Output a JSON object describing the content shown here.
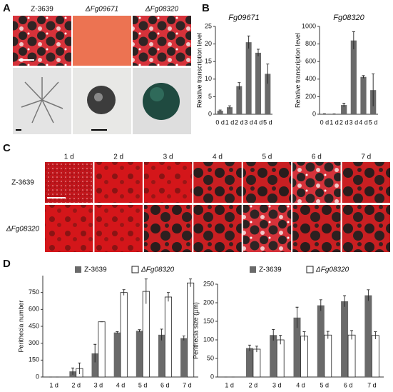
{
  "panel_labels": [
    "A",
    "B",
    "C",
    "D"
  ],
  "panel_a": {
    "strains": [
      "Z-3639",
      "ΔFg09671",
      "ΔFg08320"
    ]
  },
  "panel_c": {
    "days": [
      "1 d",
      "2 d",
      "3 d",
      "4 d",
      "5 d",
      "6 d",
      "7 d"
    ],
    "strains": [
      "Z-3639",
      "ΔFg08320"
    ]
  },
  "chart_data": [
    {
      "type": "bar",
      "title": "Fg09671",
      "y_label": "Relative transcription level",
      "categories": [
        "0 d",
        "1 d",
        "2 d",
        "3 d",
        "4 d",
        "5 d"
      ],
      "values": [
        1,
        2,
        8,
        20.5,
        17.5,
        11.5
      ],
      "errors": [
        0.2,
        0.4,
        1,
        1.8,
        1,
        2.8
      ],
      "color": "#6a6a6a",
      "ylim": [
        0,
        25
      ],
      "yticks": [
        0,
        5,
        10,
        15,
        20,
        25
      ]
    },
    {
      "type": "bar",
      "title": "Fg08320",
      "y_label": "Relative transcription level",
      "categories": [
        "0 d",
        "1 d",
        "2 d",
        "3 d",
        "4 d",
        "5 d"
      ],
      "values": [
        3,
        2,
        105,
        840,
        425,
        275
      ],
      "errors": [
        2,
        1,
        20,
        100,
        15,
        185
      ],
      "color": "#6a6a6a",
      "ylim": [
        0,
        1000
      ],
      "yticks": [
        0,
        200,
        400,
        600,
        800,
        1000
      ]
    },
    {
      "type": "bar",
      "y_label": "Perithecia number",
      "categories": [
        "1 d",
        "2 d",
        "3 d",
        "4 d",
        "5 d",
        "6 d",
        "7 d"
      ],
      "series": [
        {
          "name": "Z-3639",
          "color": "#6a6a6a",
          "values": [
            0,
            50,
            210,
            395,
            410,
            375,
            345
          ],
          "errors": [
            0,
            30,
            80,
            8,
            10,
            50,
            20
          ]
        },
        {
          "name": "ΔFg08320",
          "color": "#ffffff",
          "values": [
            0,
            75,
            490,
            750,
            760,
            710,
            835
          ],
          "errors": [
            0,
            50,
            0,
            25,
            110,
            40,
            35
          ]
        }
      ],
      "ylim": [
        0,
        900
      ],
      "yticks": [
        0,
        150,
        300,
        450,
        600,
        750
      ]
    },
    {
      "type": "bar",
      "y_label": "Perithecia size (µm)",
      "categories": [
        "1 d",
        "2 d",
        "3 d",
        "4 d",
        "5 d",
        "6 d",
        "7 d"
      ],
      "series": [
        {
          "name": "Z-3639",
          "color": "#6a6a6a",
          "values": [
            0,
            78,
            113,
            160,
            193,
            204,
            220
          ],
          "errors": [
            0,
            8,
            15,
            28,
            15,
            15,
            15
          ]
        },
        {
          "name": "ΔFg08320",
          "color": "#ffffff",
          "values": [
            0,
            75,
            100,
            110,
            113,
            113,
            112
          ],
          "errors": [
            0,
            8,
            12,
            12,
            10,
            12,
            10
          ]
        }
      ],
      "ylim": [
        0,
        250
      ],
      "yticks": [
        0,
        50,
        100,
        150,
        200,
        250
      ]
    }
  ]
}
